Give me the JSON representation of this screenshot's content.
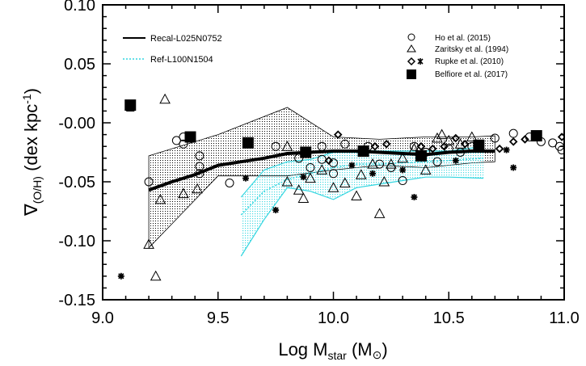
{
  "chart_data": {
    "type": "scatter",
    "xlim": [
      9.0,
      11.0
    ],
    "ylim": [
      -0.15,
      0.1
    ],
    "x_ticks": [
      "9.0",
      "9.5",
      "10.0",
      "10.5",
      "11.0"
    ],
    "y_ticks": [
      "-0.15",
      "-0.10",
      "-0.05",
      "-0.00",
      "0.05",
      "0.10"
    ],
    "x_tick_values": [
      9.0,
      9.5,
      10.0,
      10.5,
      11.0
    ],
    "y_tick_values": [
      -0.15,
      -0.1,
      -0.05,
      0.0,
      0.05,
      0.1
    ],
    "xlabel": {
      "main": "Log M",
      "sub": "star",
      "unit": "(M",
      "close": ")"
    },
    "ylabel": {
      "main": "∇",
      "sub": "(O/H)",
      "unit": " (dex kpc",
      "sup": "-1",
      "close": ")"
    },
    "colors": {
      "recal": "#000000",
      "ref": "#33d6e0",
      "ref_fill": "#33d6e0"
    },
    "legend": {
      "lines": [
        "Recal-L025N0752",
        "Ref-L100N1504"
      ],
      "markers": [
        "Ho et al. (2015)",
        "Zaritsky et al. (1994)",
        "Rupke et al. (2010)",
        "Belfiore et al. (2017)"
      ]
    },
    "recal_median": {
      "x": [
        9.2,
        9.3,
        9.4,
        9.5,
        9.6,
        9.7,
        9.8,
        9.9,
        10.0,
        10.1,
        10.2,
        10.3,
        10.4,
        10.5,
        10.6,
        10.7
      ],
      "y": [
        -0.057,
        -0.05,
        -0.044,
        -0.036,
        -0.033,
        -0.03,
        -0.026,
        -0.025,
        -0.024,
        -0.024,
        -0.025,
        -0.026,
        -0.027,
        -0.025,
        -0.024,
        -0.024
      ]
    },
    "recal_band": {
      "x": [
        9.2,
        9.5,
        9.8,
        10.0,
        10.2,
        10.4,
        10.6,
        10.7,
        10.7,
        10.6,
        10.4,
        10.2,
        10.0,
        9.8,
        9.5,
        9.2
      ],
      "y": [
        -0.028,
        -0.01,
        0.013,
        -0.012,
        -0.014,
        -0.012,
        -0.012,
        -0.011,
        -0.033,
        -0.034,
        -0.038,
        -0.036,
        -0.04,
        -0.045,
        -0.045,
        -0.106
      ]
    },
    "ref_upper": {
      "x": [
        9.6,
        9.7,
        9.8,
        9.9,
        10.0,
        10.1,
        10.2,
        10.3,
        10.4,
        10.5,
        10.65
      ],
      "y": [
        -0.063,
        -0.04,
        -0.033,
        -0.031,
        -0.025,
        -0.023,
        -0.024,
        -0.024,
        -0.024,
        -0.024,
        -0.02
      ]
    },
    "ref_lower": {
      "x": [
        9.6,
        9.7,
        9.8,
        9.9,
        10.0,
        10.1,
        10.2,
        10.3,
        10.4,
        10.5,
        10.65
      ],
      "y": [
        -0.113,
        -0.082,
        -0.055,
        -0.058,
        -0.065,
        -0.055,
        -0.052,
        -0.049,
        -0.046,
        -0.046,
        -0.047
      ]
    },
    "ref_median": {
      "x": [
        9.6,
        9.7,
        9.8,
        9.9,
        10.0,
        10.1,
        10.2,
        10.3,
        10.4,
        10.5,
        10.65
      ],
      "y": [
        -0.078,
        -0.058,
        -0.048,
        -0.043,
        -0.038,
        -0.035,
        -0.035,
        -0.034,
        -0.033,
        -0.032,
        -0.03
      ]
    },
    "ho_2015": {
      "x": [
        9.2,
        9.32,
        9.35,
        9.35,
        9.42,
        9.42,
        9.42,
        9.55,
        9.75,
        9.85,
        9.9,
        9.95,
        9.95,
        10.0,
        10.0,
        10.05,
        10.15,
        10.2,
        10.25,
        10.3,
        10.35,
        10.4,
        10.45,
        10.5,
        10.55,
        10.6,
        10.7,
        10.78,
        10.85,
        10.9,
        10.95,
        10.98,
        10.99
      ],
      "y": [
        -0.05,
        -0.015,
        -0.012,
        -0.018,
        -0.028,
        -0.037,
        -0.043,
        -0.051,
        -0.02,
        -0.03,
        -0.038,
        -0.02,
        -0.031,
        -0.034,
        -0.043,
        -0.018,
        -0.02,
        -0.035,
        -0.038,
        -0.049,
        -0.02,
        -0.025,
        -0.033,
        -0.022,
        -0.025,
        -0.02,
        -0.013,
        -0.009,
        -0.012,
        -0.016,
        -0.017,
        -0.02,
        -0.023
      ]
    },
    "zaritsky_1994": {
      "x": [
        9.2,
        9.23,
        9.25,
        9.27,
        9.35,
        9.41,
        9.8,
        9.8,
        9.85,
        9.87,
        9.9,
        9.95,
        10.0,
        10.05,
        10.1,
        10.12,
        10.17,
        10.2,
        10.22,
        10.25,
        10.3,
        10.35,
        10.4,
        10.45,
        10.47,
        10.5,
        10.55,
        10.6
      ],
      "y": [
        -0.103,
        -0.13,
        -0.065,
        0.02,
        -0.06,
        -0.056,
        -0.05,
        -0.02,
        -0.057,
        -0.064,
        -0.047,
        -0.04,
        -0.055,
        -0.051,
        -0.062,
        -0.044,
        -0.035,
        -0.077,
        -0.05,
        -0.035,
        -0.03,
        -0.022,
        -0.04,
        -0.013,
        -0.01,
        -0.015,
        -0.018,
        -0.012
      ]
    },
    "rupke_2010": {
      "x": [
        9.98,
        10.02,
        10.18,
        10.23,
        10.38,
        10.43,
        10.48,
        10.53,
        10.57,
        10.63,
        10.72,
        10.78,
        10.83,
        10.99
      ],
      "y": [
        -0.032,
        -0.01,
        -0.02,
        -0.018,
        -0.02,
        -0.022,
        -0.02,
        -0.013,
        -0.018,
        -0.02,
        -0.022,
        -0.016,
        -0.014,
        -0.012
      ]
    },
    "rupke_2010_x": {
      "x": [
        9.08,
        9.62,
        9.75,
        9.87,
        10.08,
        10.17,
        10.3,
        10.35,
        10.53,
        10.62,
        10.75,
        10.78
      ],
      "y": [
        -0.13,
        -0.047,
        -0.074,
        -0.046,
        -0.036,
        -0.043,
        -0.04,
        -0.063,
        -0.032,
        -0.022,
        -0.023,
        -0.038
      ]
    },
    "belfiore_2017": {
      "x": [
        9.12,
        9.38,
        9.63,
        9.88,
        10.13,
        10.38,
        10.63,
        10.88
      ],
      "y": [
        0.015,
        -0.012,
        -0.017,
        -0.025,
        -0.024,
        -0.028,
        -0.019,
        -0.011
      ],
      "err_up": [
        0.003,
        0,
        0,
        0,
        0,
        0,
        0,
        0
      ],
      "err_down": [
        0.005,
        0,
        0,
        0,
        0,
        0,
        0,
        0
      ]
    }
  }
}
